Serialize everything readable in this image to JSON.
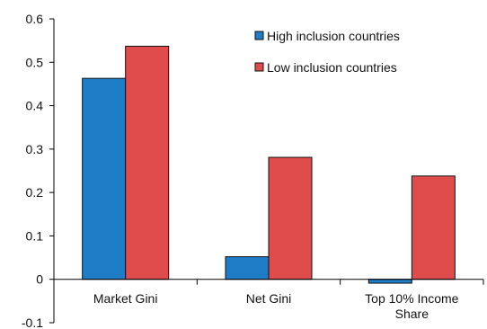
{
  "chart_data": {
    "type": "bar",
    "categories": [
      [
        "Market Gini"
      ],
      [
        "Net Gini"
      ],
      [
        "Top 10% Income",
        "Share"
      ]
    ],
    "series": [
      {
        "name": "High inclusion countries",
        "color": "#1f7cc7",
        "values": [
          0.463,
          0.052,
          -0.009
        ]
      },
      {
        "name": "Low inclusion countries",
        "color": "#e04b4b",
        "values": [
          0.537,
          0.281,
          0.238
        ]
      }
    ],
    "yticks": [
      "0.6",
      "0.5",
      "0.4",
      "0.3",
      "0.2",
      "0.1",
      "0",
      "-0.1"
    ],
    "ylim": [
      -0.1,
      0.6
    ],
    "grid": false,
    "legend_position": "top-right"
  }
}
